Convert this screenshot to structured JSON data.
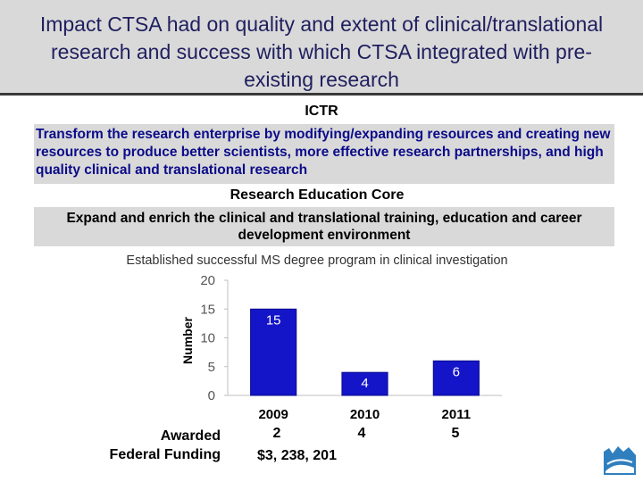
{
  "slide": {
    "title": "Impact CTSA had on quality and extent of clinical/translational research and success with which CTSA integrated with pre-existing research",
    "ictr_label": "ICTR",
    "goal_text": "Transform the research enterprise by modifying/expanding resources and creating new resources to produce better scientists, more effective research partnerships, and high quality clinical and translational research",
    "core_label": "Research Education Core",
    "core_goal": "Expand and enrich the clinical and translational training, education and career development environment"
  },
  "funding": {
    "label_line1": "Awarded",
    "label_line2": "Federal Funding",
    "values": [
      "2",
      "4",
      "5"
    ],
    "amount_2009": "$3, 238, 201"
  },
  "colors": {
    "bar": "#1414c8",
    "bar_stroke": "#0a0a8c",
    "title_band": "#d9d9d9",
    "box": "#d9d9d9",
    "title_text": "#1f1f5f"
  },
  "chart_data": {
    "type": "bar",
    "title": "Established successful MS degree program in clinical investigation",
    "xlabel": "",
    "ylabel": "Number",
    "categories": [
      "2009",
      "2010",
      "2011"
    ],
    "values": [
      15,
      4,
      6
    ],
    "data_labels": [
      "15",
      "4",
      "6"
    ],
    "ylim": [
      0,
      20
    ],
    "yticks": [
      0,
      5,
      10,
      15,
      20
    ],
    "ytick_labels": [
      "0",
      "5",
      "10",
      "15",
      "20"
    ],
    "grid": false,
    "legend": "none"
  }
}
